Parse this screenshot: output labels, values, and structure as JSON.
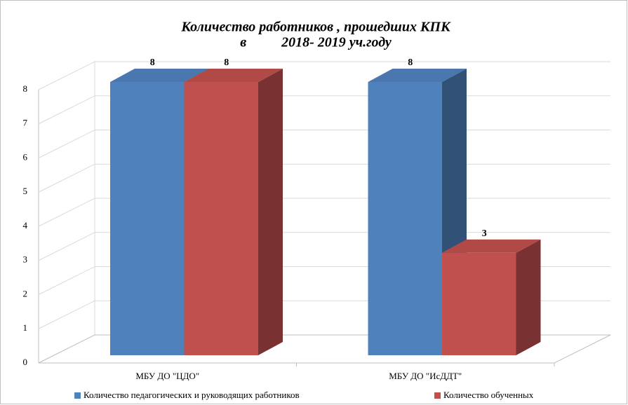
{
  "chart_data": {
    "type": "bar3d",
    "title": "Количество работников , прошедших КПК",
    "subtitle": "в          2018- 2019 уч.году",
    "categories": [
      "МБУ ДО \"ЦДО\"",
      "МБУ ДО \"ИсДДТ\""
    ],
    "series": [
      {
        "name": "Количество педагогических и руководящих работников",
        "color": "#4f81bd",
        "values": [
          8,
          8
        ]
      },
      {
        "name": "Количество обученных",
        "color": "#c0504d",
        "values": [
          8,
          3
        ]
      }
    ],
    "ylim": [
      0,
      8
    ],
    "yticks": [
      0,
      1,
      2,
      3,
      4,
      5,
      6,
      7,
      8
    ],
    "grid": true,
    "legend": "bottom"
  }
}
